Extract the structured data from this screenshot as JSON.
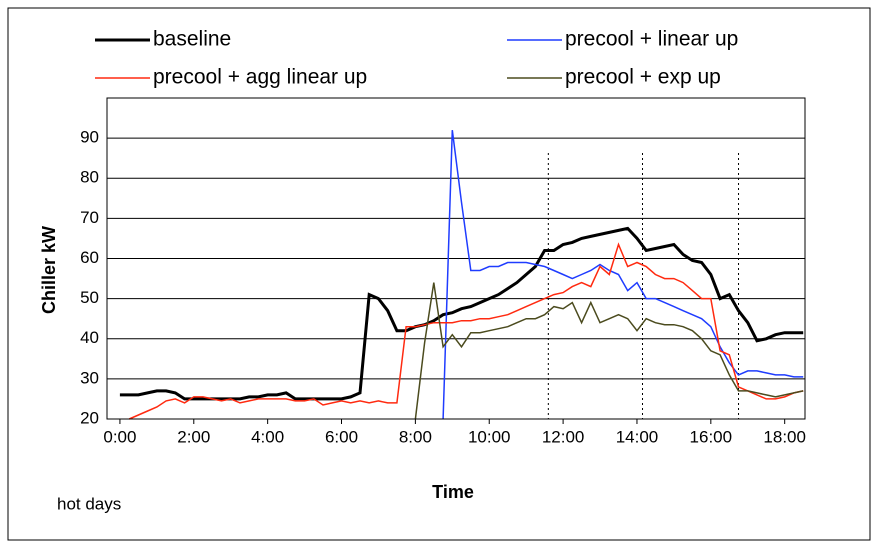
{
  "chart_data": {
    "type": "line",
    "xlabel": "Time",
    "ylabel": "Chiller kW",
    "note": "hot days",
    "x": [
      0,
      0.25,
      0.5,
      0.75,
      1,
      1.25,
      1.5,
      1.75,
      2,
      2.25,
      2.5,
      2.75,
      3,
      3.25,
      3.5,
      3.75,
      4,
      4.25,
      4.5,
      4.75,
      5,
      5.25,
      5.5,
      5.75,
      6,
      6.25,
      6.5,
      6.75,
      7,
      7.25,
      7.5,
      7.75,
      8,
      8.25,
      8.5,
      8.75,
      9,
      9.25,
      9.5,
      9.75,
      10,
      10.25,
      10.5,
      10.75,
      11,
      11.25,
      11.5,
      11.75,
      12,
      12.25,
      12.5,
      12.75,
      13,
      13.25,
      13.5,
      13.75,
      14,
      14.25,
      14.5,
      14.75,
      15,
      15.25,
      15.5,
      15.75,
      16,
      16.25,
      16.5,
      16.75,
      17,
      17.25,
      17.5,
      17.75,
      18,
      18.25,
      18.5
    ],
    "series": [
      {
        "name": "baseline",
        "color": "#000000",
        "width": 3,
        "values": [
          26,
          26,
          26,
          26.5,
          27,
          27,
          26.5,
          25,
          25,
          25,
          25,
          25,
          25,
          25,
          25.5,
          25.5,
          26,
          26,
          26.5,
          25,
          25,
          25,
          25,
          25,
          25,
          25.5,
          26.5,
          51,
          50,
          47,
          42,
          42,
          43,
          43.5,
          44.5,
          46,
          46.5,
          47.5,
          48,
          49,
          50,
          51,
          52.5,
          54,
          56,
          58,
          62,
          62,
          63.5,
          64,
          65,
          65.5,
          66,
          66.5,
          67,
          67.5,
          65,
          62,
          62.5,
          63,
          63.5,
          61,
          59.5,
          59,
          56,
          50,
          51,
          47,
          44,
          39.5,
          40,
          41,
          41.5,
          41.5,
          41.5
        ]
      },
      {
        "name": "precool + linear up",
        "color": "#1f3cff",
        "width": 1.5,
        "values": [
          null,
          null,
          null,
          null,
          null,
          null,
          null,
          null,
          null,
          null,
          null,
          null,
          null,
          null,
          null,
          null,
          null,
          null,
          null,
          null,
          null,
          null,
          null,
          null,
          null,
          null,
          null,
          null,
          null,
          null,
          null,
          null,
          null,
          null,
          null,
          20,
          92,
          74,
          57,
          57,
          58,
          58,
          59,
          59,
          59,
          58.5,
          58,
          57,
          56,
          55,
          56,
          57,
          58.5,
          57,
          56,
          52,
          54,
          50,
          50,
          49,
          48,
          47,
          46,
          45,
          43,
          38,
          34,
          31,
          32,
          32,
          31.5,
          31,
          31,
          30.5,
          30.5
        ]
      },
      {
        "name": "precool + agg linear up",
        "color": "#ff2a10",
        "width": 1.5,
        "values": [
          null,
          20,
          21,
          22,
          23,
          24.5,
          25,
          24,
          25.5,
          25.5,
          25,
          24.5,
          25,
          24,
          24.5,
          25,
          25,
          25,
          25,
          24.5,
          24.5,
          25,
          23.5,
          24,
          24.5,
          24,
          24.5,
          24,
          24.5,
          24,
          24,
          43,
          43,
          43.5,
          44,
          44,
          44,
          44.5,
          44.5,
          45,
          45,
          45.5,
          46,
          47,
          48,
          49,
          50,
          51,
          51.5,
          53,
          54,
          53,
          58,
          56,
          63.5,
          58,
          59,
          58,
          56,
          55,
          55,
          54,
          52,
          50,
          50,
          37,
          36,
          28,
          27,
          26,
          25,
          25,
          25.5,
          26.5,
          27
        ]
      },
      {
        "name": "precool + exp up",
        "color": "#4b4b1e",
        "width": 1.5,
        "values": [
          null,
          null,
          null,
          null,
          null,
          null,
          null,
          null,
          null,
          null,
          null,
          null,
          null,
          null,
          null,
          null,
          null,
          null,
          null,
          null,
          null,
          null,
          null,
          null,
          null,
          null,
          null,
          null,
          null,
          null,
          null,
          null,
          20,
          39,
          54,
          38,
          41,
          38,
          41.5,
          41.5,
          42,
          42.5,
          43,
          44,
          45,
          45,
          46,
          48,
          47.5,
          49,
          44,
          49,
          44,
          45,
          46,
          45,
          42,
          45,
          44,
          43.5,
          43.5,
          43,
          42,
          40,
          37,
          36,
          31,
          27,
          27,
          26.5,
          26,
          25.5,
          26,
          26.5,
          27
        ]
      }
    ],
    "vlines": [
      11.6,
      14.15,
      16.75
    ],
    "xlim": [
      -0.35,
      18.55
    ],
    "xticks": [
      {
        "value": 0,
        "label": "0:00"
      },
      {
        "value": 2,
        "label": "2:00"
      },
      {
        "value": 4,
        "label": "4:00"
      },
      {
        "value": 6,
        "label": "6:00"
      },
      {
        "value": 8,
        "label": "8:00"
      },
      {
        "value": 10,
        "label": "10:00"
      },
      {
        "value": 12,
        "label": "12:00"
      },
      {
        "value": 14,
        "label": "14:00"
      },
      {
        "value": 16,
        "label": "16:00"
      },
      {
        "value": 18,
        "label": "18:00"
      }
    ],
    "ylim": [
      20,
      100
    ],
    "yticks": [
      20,
      30,
      40,
      50,
      60,
      70,
      80,
      90
    ],
    "grid": true
  }
}
